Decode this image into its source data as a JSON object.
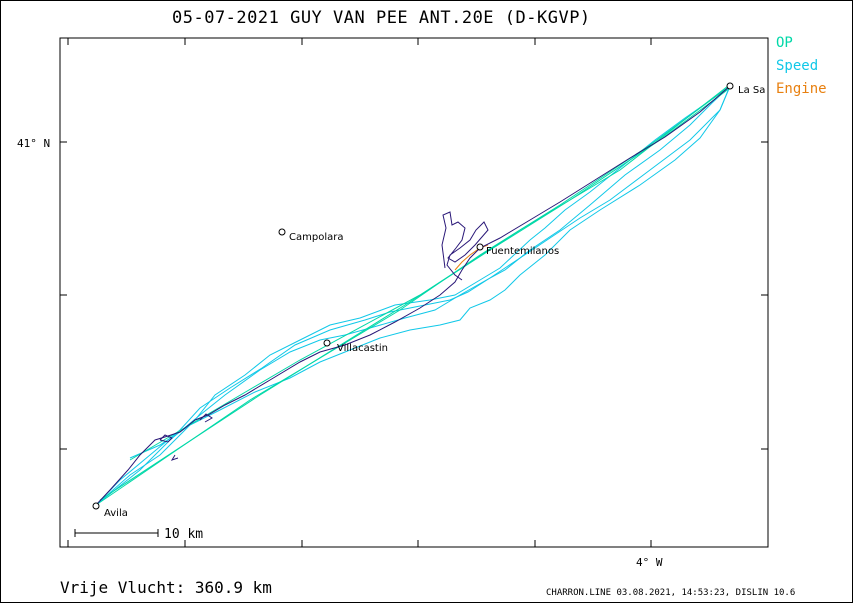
{
  "title": "05-07-2021   GUY VAN PEE   ANT.20E (D-KGVP)",
  "legend": {
    "op": {
      "label": "OP",
      "color": "#00d8a8"
    },
    "speed": {
      "label": "Speed",
      "color": "#10c8e8"
    },
    "engine": {
      "label": "Engine",
      "color": "#e88010"
    }
  },
  "axes": {
    "lat_label": "41° N",
    "lon_label": "4° W"
  },
  "places": [
    {
      "name": "La Sa"
    },
    {
      "name": "Campolara"
    },
    {
      "name": "Fuentemilanos"
    },
    {
      "name": "Villacastin"
    },
    {
      "name": "Avila"
    }
  ],
  "scale_label": "10  km",
  "footer": {
    "distance": "Vrije Vlucht:  360.9 km",
    "credit": "CHARRON.LINE 03.08.2021, 14:53:23, DISLIN 10.6"
  },
  "colors": {
    "track_op": "#00d8a8",
    "track_speed": "#10c8e8",
    "track_engine": "#e88010",
    "track_main": "#2a1878"
  }
}
